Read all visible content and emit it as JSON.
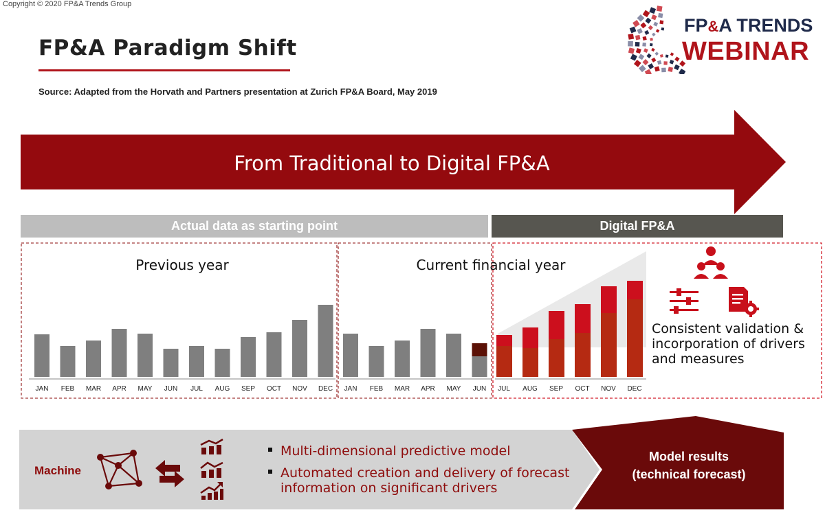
{
  "copyright": "Copyright © 2020 FP&A Trends Group",
  "title": "FP&A Paradigm Shift",
  "source": "Source: Adapted from the Horvath and Partners presentation at Zurich FP&A Board, May 2019",
  "logo": {
    "line1_a": "FP",
    "line1_amp": "&",
    "line1_b": "A TRENDS",
    "line2": "WEBINAR"
  },
  "arrow_label": "From Traditional to Digital FP&A",
  "bands": {
    "actual": "Actual data as starting point",
    "digital": "Digital FP&A"
  },
  "panes": {
    "previous": "Previous year",
    "current": "Current financial year"
  },
  "validation_text": "Consistent validation & incorporation of drivers and measures",
  "machine_label": "Machine",
  "bullets": [
    "Multi-dimensional predictive model",
    "Automated creation and delivery of forecast information on significant drivers"
  ],
  "results": {
    "line1": "Model results",
    "line2": "(technical forecast)"
  },
  "colors": {
    "brand_red": "#b0141b",
    "dark_red": "#8e0c0c",
    "forecast_dark": "#b52a12",
    "forecast_top": "#cc0f1d",
    "actual_gray": "#7f7f7f",
    "june_top": "#5b1106"
  },
  "icons": [
    "network-icon",
    "swap-arrows-icon",
    "bar-chart-icon",
    "growth-chart-icon",
    "team-icon",
    "sliders-icon",
    "document-gear-icon"
  ],
  "chart_data": {
    "type": "bar",
    "series": [
      {
        "categories": [
          "JAN",
          "FEB",
          "MAR",
          "APR",
          "MAY",
          "JUN",
          "JUL",
          "AUG",
          "SEP",
          "OCT",
          "NOV",
          "DEC"
        ],
        "values": [
          62,
          45,
          53,
          70,
          63,
          41,
          45,
          41,
          58,
          65,
          83,
          105
        ]
      },
      {
        "categories": [
          "JAN",
          "FEB",
          "MAR",
          "APR",
          "MAY",
          "JUN"
        ],
        "values": [
          63,
          45,
          53,
          70,
          63,
          30
        ],
        "jun_extra": 19
      },
      {
        "categories": [
          "JUL",
          "AUG",
          "SEP",
          "OCT",
          "NOV",
          "DEC"
        ],
        "base": [
          45,
          42,
          55,
          64,
          93,
          113
        ],
        "top": [
          16,
          30,
          41,
          42,
          39,
          27
        ]
      }
    ],
    "ylim": [
      0,
      140
    ]
  }
}
